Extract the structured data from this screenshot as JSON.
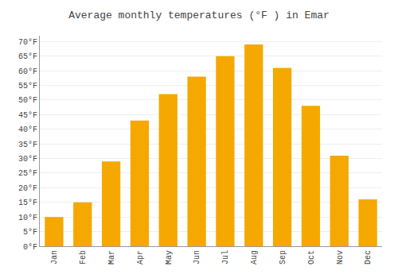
{
  "chart_data": {
    "type": "bar",
    "title": "Average monthly temperatures (°F ) in Emar",
    "categories": [
      "Jan",
      "Feb",
      "Mar",
      "Apr",
      "May",
      "Jun",
      "Jul",
      "Aug",
      "Sep",
      "Oct",
      "Nov",
      "Dec"
    ],
    "values": [
      10,
      15,
      29,
      43,
      52,
      58,
      65,
      69,
      61,
      48,
      31,
      16
    ],
    "color": "#F5A800",
    "ylim": [
      0,
      72
    ],
    "yticks": [
      {
        "value": 0,
        "label": "0°F"
      },
      {
        "value": 5,
        "label": "5°F"
      },
      {
        "value": 10,
        "label": "10°F"
      },
      {
        "value": 15,
        "label": "15°F"
      },
      {
        "value": 20,
        "label": "20°F"
      },
      {
        "value": 25,
        "label": "25°F"
      },
      {
        "value": 30,
        "label": "30°F"
      },
      {
        "value": 35,
        "label": "35°F"
      },
      {
        "value": 40,
        "label": "40°F"
      },
      {
        "value": 45,
        "label": "45°F"
      },
      {
        "value": 50,
        "label": "50°F"
      },
      {
        "value": 55,
        "label": "55°F"
      },
      {
        "value": 60,
        "label": "60°F"
      },
      {
        "value": 65,
        "label": "65°F"
      },
      {
        "value": 70,
        "label": "70°F"
      }
    ],
    "grid": true
  }
}
